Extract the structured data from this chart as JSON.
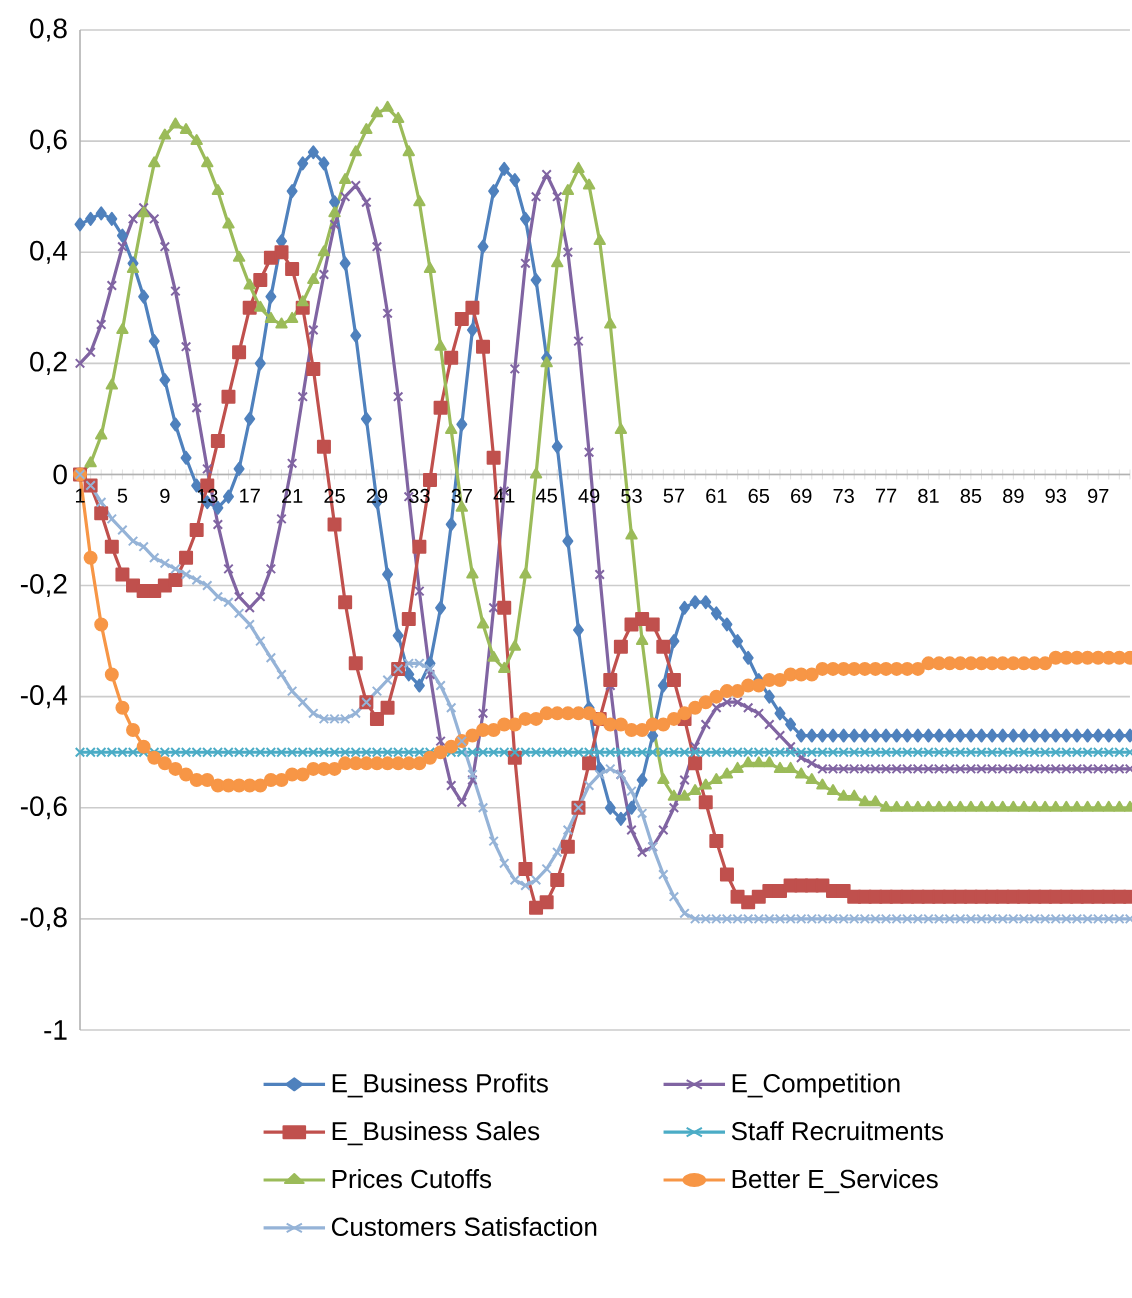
{
  "chart_data": {
    "type": "line",
    "categories": [
      "1",
      null,
      null,
      null,
      "5",
      null,
      null,
      null,
      "9",
      null,
      null,
      null,
      "13",
      null,
      null,
      null,
      "17",
      null,
      null,
      null,
      "21",
      null,
      null,
      null,
      "25",
      null,
      null,
      null,
      "29",
      null,
      null,
      null,
      "33",
      null,
      null,
      null,
      "37",
      null,
      null,
      null,
      "41",
      null,
      null,
      null,
      "45",
      null,
      null,
      null,
      "49",
      null,
      null,
      null,
      "53",
      null,
      null,
      null,
      "57",
      null,
      null,
      null,
      "61",
      null,
      null,
      null,
      "65",
      null,
      null,
      null,
      "69",
      null,
      null,
      null,
      "73",
      null,
      null,
      null,
      "77",
      null,
      null,
      null,
      "81",
      null,
      null,
      null,
      "85",
      null,
      null,
      null,
      "89",
      null,
      null,
      null,
      "93",
      null,
      null,
      null,
      "97",
      null,
      null,
      null
    ],
    "series": [
      {
        "name": "E_Business Profits",
        "color": "#4f81bd",
        "marker": "diamond",
        "values": [
          0.45,
          0.46,
          0.47,
          0.46,
          0.43,
          0.38,
          0.32,
          0.24,
          0.17,
          0.09,
          0.03,
          -0.02,
          -0.05,
          -0.06,
          -0.04,
          0.01,
          0.1,
          0.2,
          0.32,
          0.42,
          0.51,
          0.56,
          0.58,
          0.56,
          0.49,
          0.38,
          0.25,
          0.1,
          -0.05,
          -0.18,
          -0.29,
          -0.36,
          -0.38,
          -0.34,
          -0.24,
          -0.09,
          0.09,
          0.26,
          0.41,
          0.51,
          0.55,
          0.53,
          0.46,
          0.35,
          0.21,
          0.05,
          -0.12,
          -0.28,
          -0.42,
          -0.53,
          -0.6,
          -0.62,
          -0.6,
          -0.55,
          -0.47,
          -0.38,
          -0.3,
          -0.24,
          -0.23,
          -0.23,
          -0.25,
          -0.27,
          -0.3,
          -0.33,
          -0.37,
          -0.4,
          -0.43,
          -0.45,
          -0.47,
          -0.47,
          -0.47,
          -0.47,
          -0.47,
          -0.47,
          -0.47,
          -0.47,
          -0.47,
          -0.47,
          -0.47,
          -0.47,
          -0.47,
          -0.47,
          -0.47,
          -0.47,
          -0.47,
          -0.47,
          -0.47,
          -0.47,
          -0.47,
          -0.47,
          -0.47,
          -0.47,
          -0.47,
          -0.47,
          -0.47,
          -0.47,
          -0.47,
          -0.47,
          -0.47,
          -0.47
        ]
      },
      {
        "name": "E_Competition",
        "color": "#8064a2",
        "marker": "cross",
        "values": [
          0.2,
          0.22,
          0.27,
          0.34,
          0.41,
          0.46,
          0.48,
          0.46,
          0.41,
          0.33,
          0.23,
          0.12,
          0.01,
          -0.09,
          -0.17,
          -0.22,
          -0.24,
          -0.22,
          -0.17,
          -0.08,
          0.02,
          0.14,
          0.26,
          0.36,
          0.45,
          0.5,
          0.52,
          0.49,
          0.41,
          0.29,
          0.14,
          -0.04,
          -0.21,
          -0.36,
          -0.48,
          -0.56,
          -0.59,
          -0.55,
          -0.43,
          -0.24,
          -0.03,
          0.19,
          0.38,
          0.5,
          0.54,
          0.5,
          0.4,
          0.24,
          0.04,
          -0.18,
          -0.38,
          -0.54,
          -0.64,
          -0.68,
          -0.67,
          -0.64,
          -0.6,
          -0.55,
          -0.49,
          -0.45,
          -0.42,
          -0.41,
          -0.41,
          -0.42,
          -0.43,
          -0.45,
          -0.47,
          -0.49,
          -0.51,
          -0.52,
          -0.53,
          -0.53,
          -0.53,
          -0.53,
          -0.53,
          -0.53,
          -0.53,
          -0.53,
          -0.53,
          -0.53,
          -0.53,
          -0.53,
          -0.53,
          -0.53,
          -0.53,
          -0.53,
          -0.53,
          -0.53,
          -0.53,
          -0.53,
          -0.53,
          -0.53,
          -0.53,
          -0.53,
          -0.53,
          -0.53,
          -0.53,
          -0.53,
          -0.53,
          -0.53
        ]
      },
      {
        "name": "E_Business Sales",
        "color": "#c0504d",
        "marker": "square",
        "values": [
          0,
          -0.02,
          -0.07,
          -0.13,
          -0.18,
          -0.2,
          -0.21,
          -0.21,
          -0.2,
          -0.19,
          -0.15,
          -0.1,
          -0.02,
          0.06,
          0.14,
          0.22,
          0.3,
          0.35,
          0.39,
          0.4,
          0.37,
          0.3,
          0.19,
          0.05,
          -0.09,
          -0.23,
          -0.34,
          -0.41,
          -0.44,
          -0.42,
          -0.35,
          -0.26,
          -0.13,
          -0.01,
          0.12,
          0.21,
          0.28,
          0.3,
          0.23,
          0.03,
          -0.24,
          -0.51,
          -0.71,
          -0.78,
          -0.77,
          -0.73,
          -0.67,
          -0.6,
          -0.52,
          -0.44,
          -0.37,
          -0.31,
          -0.27,
          -0.26,
          -0.27,
          -0.31,
          -0.37,
          -0.44,
          -0.52,
          -0.59,
          -0.66,
          -0.72,
          -0.76,
          -0.77,
          -0.76,
          -0.75,
          -0.75,
          -0.74,
          -0.74,
          -0.74,
          -0.74,
          -0.75,
          -0.75,
          -0.76,
          -0.76,
          -0.76,
          -0.76,
          -0.76,
          -0.76,
          -0.76,
          -0.76,
          -0.76,
          -0.76,
          -0.76,
          -0.76,
          -0.76,
          -0.76,
          -0.76,
          -0.76,
          -0.76,
          -0.76,
          -0.76,
          -0.76,
          -0.76,
          -0.76,
          -0.76,
          -0.76,
          -0.76,
          -0.76,
          -0.76
        ]
      },
      {
        "name": "Staff Recruitments",
        "color": "#4bacc6",
        "marker": "cross",
        "values": [
          -0.5,
          -0.5,
          -0.5,
          -0.5,
          -0.5,
          -0.5,
          -0.5,
          -0.5,
          -0.5,
          -0.5,
          -0.5,
          -0.5,
          -0.5,
          -0.5,
          -0.5,
          -0.5,
          -0.5,
          -0.5,
          -0.5,
          -0.5,
          -0.5,
          -0.5,
          -0.5,
          -0.5,
          -0.5,
          -0.5,
          -0.5,
          -0.5,
          -0.5,
          -0.5,
          -0.5,
          -0.5,
          -0.5,
          -0.5,
          -0.5,
          -0.5,
          -0.5,
          -0.5,
          -0.5,
          -0.5,
          -0.5,
          -0.5,
          -0.5,
          -0.5,
          -0.5,
          -0.5,
          -0.5,
          -0.5,
          -0.5,
          -0.5,
          -0.5,
          -0.5,
          -0.5,
          -0.5,
          -0.5,
          -0.5,
          -0.5,
          -0.5,
          -0.5,
          -0.5,
          -0.5,
          -0.5,
          -0.5,
          -0.5,
          -0.5,
          -0.5,
          -0.5,
          -0.5,
          -0.5,
          -0.5,
          -0.5,
          -0.5,
          -0.5,
          -0.5,
          -0.5,
          -0.5,
          -0.5,
          -0.5,
          -0.5,
          -0.5,
          -0.5,
          -0.5,
          -0.5,
          -0.5,
          -0.5,
          -0.5,
          -0.5,
          -0.5,
          -0.5,
          -0.5,
          -0.5,
          -0.5,
          -0.5,
          -0.5,
          -0.5,
          -0.5,
          -0.5,
          -0.5,
          -0.5,
          -0.5
        ]
      },
      {
        "name": "Prices Cutoffs",
        "color": "#9bbb59",
        "marker": "triangle",
        "values": [
          0,
          0.02,
          0.07,
          0.16,
          0.26,
          0.37,
          0.47,
          0.56,
          0.61,
          0.63,
          0.62,
          0.6,
          0.56,
          0.51,
          0.45,
          0.39,
          0.34,
          0.3,
          0.28,
          0.27,
          0.28,
          0.31,
          0.35,
          0.4,
          0.47,
          0.53,
          0.58,
          0.62,
          0.65,
          0.66,
          0.64,
          0.58,
          0.49,
          0.37,
          0.23,
          0.08,
          -0.06,
          -0.18,
          -0.27,
          -0.33,
          -0.35,
          -0.31,
          -0.18,
          0.0,
          0.2,
          0.38,
          0.51,
          0.55,
          0.52,
          0.42,
          0.27,
          0.08,
          -0.11,
          -0.3,
          -0.45,
          -0.55,
          -0.58,
          -0.58,
          -0.57,
          -0.56,
          -0.55,
          -0.54,
          -0.53,
          -0.52,
          -0.52,
          -0.52,
          -0.53,
          -0.53,
          -0.54,
          -0.55,
          -0.56,
          -0.57,
          -0.58,
          -0.58,
          -0.59,
          -0.59,
          -0.6,
          -0.6,
          -0.6,
          -0.6,
          -0.6,
          -0.6,
          -0.6,
          -0.6,
          -0.6,
          -0.6,
          -0.6,
          -0.6,
          -0.6,
          -0.6,
          -0.6,
          -0.6,
          -0.6,
          -0.6,
          -0.6,
          -0.6,
          -0.6,
          -0.6,
          -0.6,
          -0.6
        ]
      },
      {
        "name": "Better E_Services",
        "color": "#f79646",
        "marker": "circle",
        "values": [
          0,
          -0.15,
          -0.27,
          -0.36,
          -0.42,
          -0.46,
          -0.49,
          -0.51,
          -0.52,
          -0.53,
          -0.54,
          -0.55,
          -0.55,
          -0.56,
          -0.56,
          -0.56,
          -0.56,
          -0.56,
          -0.55,
          -0.55,
          -0.54,
          -0.54,
          -0.53,
          -0.53,
          -0.53,
          -0.52,
          -0.52,
          -0.52,
          -0.52,
          -0.52,
          -0.52,
          -0.52,
          -0.52,
          -0.51,
          -0.5,
          -0.49,
          -0.48,
          -0.47,
          -0.46,
          -0.46,
          -0.45,
          -0.45,
          -0.44,
          -0.44,
          -0.43,
          -0.43,
          -0.43,
          -0.43,
          -0.43,
          -0.44,
          -0.45,
          -0.45,
          -0.46,
          -0.46,
          -0.45,
          -0.45,
          -0.44,
          -0.43,
          -0.42,
          -0.41,
          -0.4,
          -0.39,
          -0.39,
          -0.38,
          -0.38,
          -0.37,
          -0.37,
          -0.36,
          -0.36,
          -0.36,
          -0.35,
          -0.35,
          -0.35,
          -0.35,
          -0.35,
          -0.35,
          -0.35,
          -0.35,
          -0.35,
          -0.35,
          -0.34,
          -0.34,
          -0.34,
          -0.34,
          -0.34,
          -0.34,
          -0.34,
          -0.34,
          -0.34,
          -0.34,
          -0.34,
          -0.34,
          -0.33,
          -0.33,
          -0.33,
          -0.33,
          -0.33,
          -0.33,
          -0.33,
          -0.33
        ]
      },
      {
        "name": "Customers Satisfaction",
        "color": "#95b3d7",
        "marker": "cross",
        "values": [
          0,
          -0.02,
          -0.05,
          -0.08,
          -0.1,
          -0.12,
          -0.13,
          -0.15,
          -0.16,
          -0.17,
          -0.18,
          -0.19,
          -0.2,
          -0.22,
          -0.23,
          -0.25,
          -0.27,
          -0.3,
          -0.33,
          -0.36,
          -0.39,
          -0.41,
          -0.43,
          -0.44,
          -0.44,
          -0.44,
          -0.43,
          -0.41,
          -0.39,
          -0.37,
          -0.35,
          -0.34,
          -0.34,
          -0.35,
          -0.38,
          -0.42,
          -0.48,
          -0.54,
          -0.6,
          -0.66,
          -0.7,
          -0.73,
          -0.74,
          -0.73,
          -0.71,
          -0.68,
          -0.64,
          -0.6,
          -0.56,
          -0.54,
          -0.53,
          -0.54,
          -0.57,
          -0.61,
          -0.67,
          -0.72,
          -0.76,
          -0.79,
          -0.8,
          -0.8,
          -0.8,
          -0.8,
          -0.8,
          -0.8,
          -0.8,
          -0.8,
          -0.8,
          -0.8,
          -0.8,
          -0.8,
          -0.8,
          -0.8,
          -0.8,
          -0.8,
          -0.8,
          -0.8,
          -0.8,
          -0.8,
          -0.8,
          -0.8,
          -0.8,
          -0.8,
          -0.8,
          -0.8,
          -0.8,
          -0.8,
          -0.8,
          -0.8,
          -0.8,
          -0.8,
          -0.8,
          -0.8,
          -0.8,
          -0.8,
          -0.8,
          -0.8,
          -0.8,
          -0.8,
          -0.8,
          -0.8
        ]
      }
    ],
    "ylim": [
      -1,
      0.8
    ],
    "yticks": [
      -1,
      {
        "value": -0.8,
        "label": "-0,8"
      },
      {
        "value": -0.6,
        "label": "-0,6"
      },
      {
        "value": -0.4,
        "label": "-0,4"
      },
      {
        "value": -0.2,
        "label": "-0,2"
      },
      0,
      {
        "value": 0.2,
        "label": "0,2"
      },
      {
        "value": 0.4,
        "label": "0,4"
      },
      {
        "value": 0.6,
        "label": "0,6"
      },
      {
        "value": 0.8,
        "label": "0,8"
      }
    ],
    "grid": "y",
    "legend": "bottom"
  }
}
